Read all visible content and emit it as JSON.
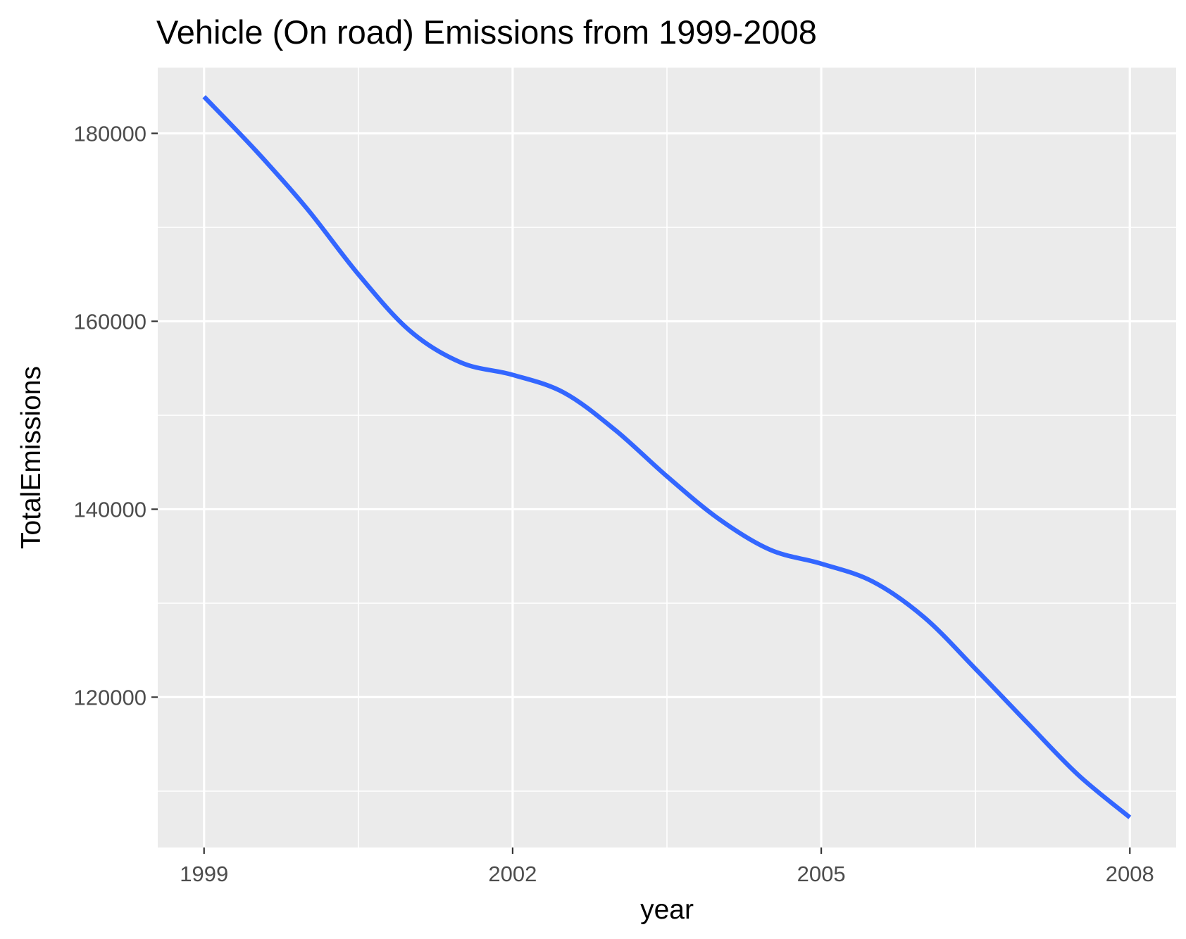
{
  "chart_data": {
    "type": "line",
    "title": "Vehicle (On road) Emissions from 1999-2008",
    "xlabel": "year",
    "ylabel": "TotalEmissions",
    "x_ticks": [
      "1999",
      "2002",
      "2005",
      "2008"
    ],
    "y_ticks": [
      "120000",
      "140000",
      "160000",
      "180000"
    ],
    "xlim": [
      1998.55,
      2008.45
    ],
    "ylim": [
      104000,
      187000
    ],
    "grid": true,
    "legend": "none",
    "series": [
      {
        "color": "#3366ff",
        "x": [
          1999,
          1999.5,
          2000,
          2000.5,
          2001,
          2001.5,
          2002,
          2002.5,
          2003,
          2003.5,
          2004,
          2004.5,
          2005,
          2005.5,
          2006,
          2006.5,
          2007,
          2007.5,
          2008
        ],
        "y": [
          183900,
          178200,
          172000,
          165000,
          159000,
          155600,
          154300,
          152400,
          148400,
          143500,
          139000,
          135700,
          134200,
          132300,
          128500,
          123000,
          117300,
          111700,
          107200
        ]
      }
    ]
  },
  "colors": {
    "panel_background": "#ebebeb",
    "grid_line": "#ffffff",
    "tick_mark": "#333333",
    "tick_label": "#4d4d4d"
  }
}
